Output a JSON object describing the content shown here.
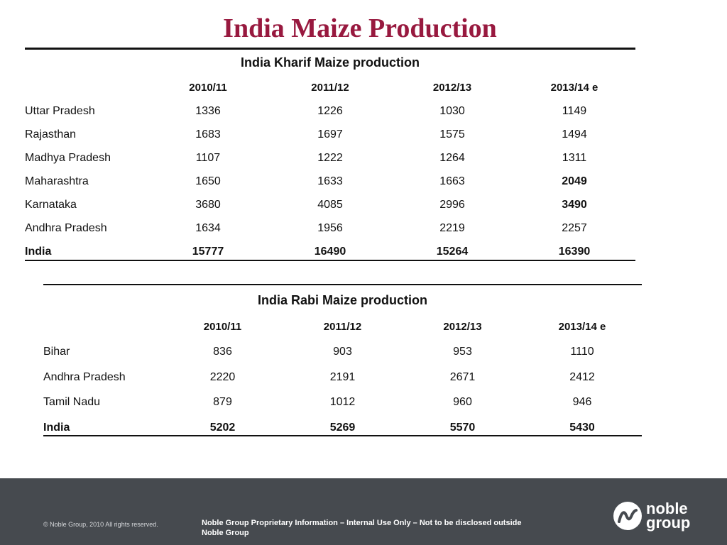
{
  "slide": {
    "title": "India Maize Production"
  },
  "kharif": {
    "title": "India Kharif Maize production",
    "headers": [
      "2010/11",
      "2011/12",
      "2012/13",
      "2013/14 e"
    ],
    "rows": [
      {
        "name": "Uttar Pradesh",
        "values": [
          "1336",
          "1226",
          "1030",
          "1149"
        ]
      },
      {
        "name": "Rajasthan",
        "values": [
          "1683",
          "1697",
          "1575",
          "1494"
        ]
      },
      {
        "name": "Madhya Pradesh",
        "values": [
          "1107",
          "1222",
          "1264",
          "1311"
        ]
      },
      {
        "name": "Maharashtra",
        "values": [
          "1650",
          "1633",
          "1663",
          "2049"
        ]
      },
      {
        "name": "Karnataka",
        "values": [
          "3680",
          "4085",
          "2996",
          "3490"
        ]
      },
      {
        "name": "Andhra Pradesh",
        "values": [
          "1634",
          "1956",
          "2219",
          "2257"
        ]
      }
    ],
    "total": {
      "name": "India",
      "values": [
        "15777",
        "16490",
        "15264",
        "16390"
      ]
    }
  },
  "rabi": {
    "title": "India Rabi Maize production",
    "headers": [
      "2010/11",
      "2011/12",
      "2012/13",
      "2013/14 e"
    ],
    "rows": [
      {
        "name": "Bihar",
        "values": [
          "836",
          "903",
          "953",
          "1110"
        ]
      },
      {
        "name": "Andhra Pradesh",
        "values": [
          "2220",
          "2191",
          "2671",
          "2412"
        ]
      },
      {
        "name": "Tamil Nadu",
        "values": [
          "879",
          "1012",
          "960",
          "946"
        ]
      }
    ],
    "total": {
      "name": "India",
      "values": [
        "5202",
        "5269",
        "5570",
        "5430"
      ]
    }
  },
  "footer": {
    "copyright": "© Noble Group, 2010 All rights reserved.",
    "proprietary": "Noble Group Proprietary Information – Internal Use Only – Not to be disclosed outside Noble Group",
    "logo_line1": "noble",
    "logo_line2": "group",
    "colors": {
      "background": "#464a4f",
      "title": "#98193f"
    }
  }
}
